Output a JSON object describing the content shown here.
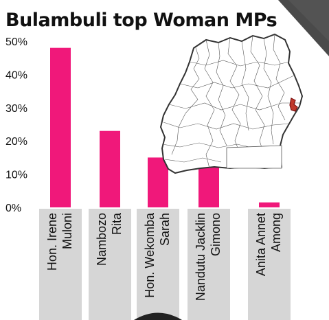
{
  "title": "Bulambuli top Woman MPs",
  "colors": {
    "bar": "#f0187a",
    "label_band": "#d6d6d6",
    "background": "#ffffff",
    "corner_texture": "#4a4a4a",
    "map_fill": "#ffffff",
    "map_stroke": "#333333",
    "highlight_district": "#c0392b"
  },
  "chart_data": {
    "type": "bar",
    "title": "Bulambuli top Woman MPs",
    "categories": [
      [
        "Hon. Irene",
        "Muloni"
      ],
      [
        "Nambozo",
        "Rita"
      ],
      [
        "Hon. Wekomba",
        "Sarah"
      ],
      [
        "Nandutu Jacklin",
        "Gimono"
      ],
      [
        "Anita Annet",
        "Among"
      ]
    ],
    "values": [
      48,
      23,
      15,
      13,
      1.5
    ],
    "yticks": [
      "0%",
      "10%",
      "20%",
      "30%",
      "40%",
      "50%"
    ],
    "ylim": [
      0,
      50
    ],
    "xlabel": "",
    "ylabel": "",
    "grid": false,
    "legend": "none"
  },
  "inset_map": {
    "description_icon": "uganda-districts-map-icon",
    "highlight": "bulambuli-district-marker"
  }
}
